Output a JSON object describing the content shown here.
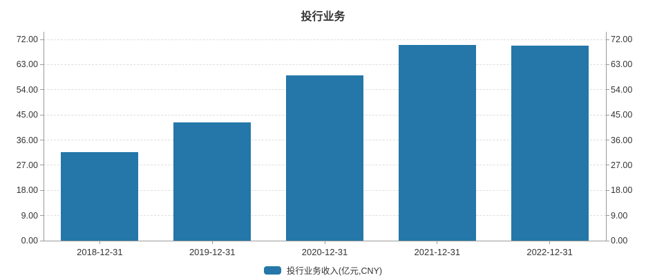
{
  "chart_data": {
    "type": "bar",
    "title": "投行业务",
    "categories": [
      "2018-12-31",
      "2019-12-31",
      "2020-12-31",
      "2021-12-31",
      "2022-12-31"
    ],
    "series": [
      {
        "name": "投行业务收入(亿元,CNY)",
        "values": [
          31.7,
          42.2,
          59.1,
          70.1,
          69.7
        ]
      }
    ],
    "ylim": [
      0,
      72
    ],
    "ytick_step": 9,
    "yticks": [
      "0.00",
      "9.00",
      "18.00",
      "27.00",
      "36.00",
      "45.00",
      "54.00",
      "63.00",
      "72.00"
    ],
    "grid": true,
    "legend_position": "bottom",
    "colors": {
      "bar": "#2477a8",
      "axis": "#999999",
      "grid": "#dddddd",
      "text": "#333333",
      "title": "#333333"
    }
  }
}
